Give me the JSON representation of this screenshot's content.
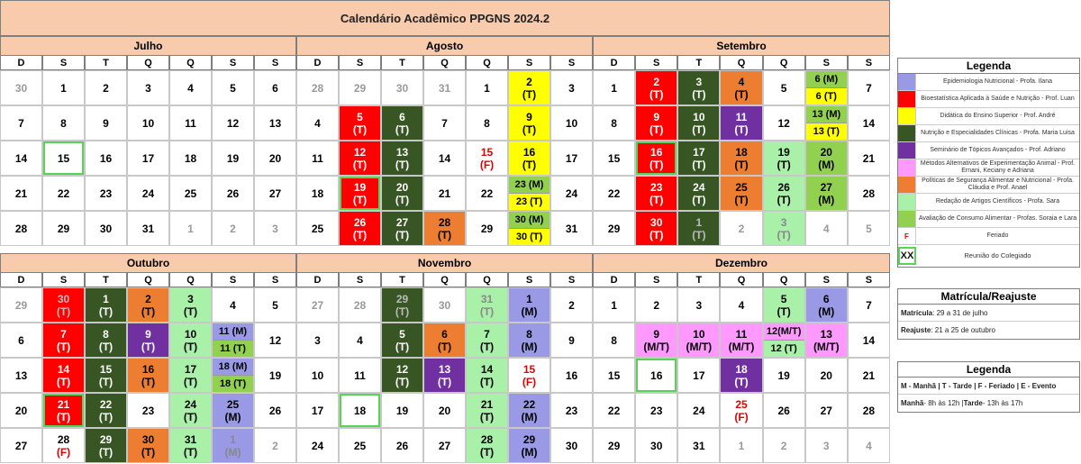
{
  "title": "Calendário Acadêmico PPGNS 2024.2",
  "weekdays": [
    "D",
    "S",
    "T",
    "Q",
    "Q",
    "S",
    "S"
  ],
  "colors": {
    "R": "#ff0000",
    "DG": "#375623",
    "Y": "#ffff00",
    "O": "#ed7d31",
    "PU": "#7030a0",
    "LP": "#9999e6",
    "PK": "#ff99ff",
    "LG": "#92d050",
    "MG": "#a9f0a9"
  },
  "months": [
    {
      "name": "Julho",
      "weeks": [
        [
          {
            "t": "30",
            "x": "o"
          },
          {
            "t": "1"
          },
          {
            "t": "2"
          },
          {
            "t": "3"
          },
          {
            "t": "4"
          },
          {
            "t": "5"
          },
          {
            "t": "6"
          }
        ],
        [
          {
            "t": "7"
          },
          {
            "t": "8"
          },
          {
            "t": "9"
          },
          {
            "t": "10"
          },
          {
            "t": "11"
          },
          {
            "t": "12"
          },
          {
            "t": "13"
          }
        ],
        [
          {
            "t": "14"
          },
          {
            "t": "15",
            "s": 1
          },
          {
            "t": "16"
          },
          {
            "t": "17"
          },
          {
            "t": "18"
          },
          {
            "t": "19"
          },
          {
            "t": "20"
          }
        ],
        [
          {
            "t": "21"
          },
          {
            "t": "22"
          },
          {
            "t": "23"
          },
          {
            "t": "24"
          },
          {
            "t": "25"
          },
          {
            "t": "26"
          },
          {
            "t": "27"
          }
        ],
        [
          {
            "t": "28"
          },
          {
            "t": "29"
          },
          {
            "t": "30"
          },
          {
            "t": "31"
          },
          {
            "t": "1",
            "x": "o"
          },
          {
            "t": "2",
            "x": "o"
          },
          {
            "t": "3",
            "x": "o"
          }
        ]
      ]
    },
    {
      "name": "Agosto",
      "weeks": [
        [
          {
            "t": "28",
            "x": "o"
          },
          {
            "t": "29",
            "x": "o"
          },
          {
            "t": "30",
            "x": "o"
          },
          {
            "t": "31",
            "x": "o"
          },
          {
            "t": "1"
          },
          {
            "t": "2",
            "b": "(T)",
            "c": "Y"
          },
          {
            "t": "3"
          }
        ],
        [
          {
            "t": "4"
          },
          {
            "t": "5",
            "b": "(T)",
            "c": "R",
            "w": 1
          },
          {
            "t": "6",
            "b": "(T)",
            "c": "DG",
            "w": 1
          },
          {
            "t": "7"
          },
          {
            "t": "8"
          },
          {
            "t": "9",
            "b": "(T)",
            "c": "Y"
          },
          {
            "t": "10"
          }
        ],
        [
          {
            "t": "11"
          },
          {
            "t": "12",
            "b": "(T)",
            "c": "R",
            "w": 1
          },
          {
            "t": "13",
            "b": "(T)",
            "c": "DG",
            "w": 1
          },
          {
            "t": "14"
          },
          {
            "t": "15",
            "b": "(F)",
            "x": "h"
          },
          {
            "t": "16",
            "b": "(T)",
            "c": "Y"
          },
          {
            "t": "17"
          }
        ],
        [
          {
            "t": "18"
          },
          {
            "t": "19",
            "b": "(T)",
            "c": "R",
            "w": 1,
            "s": 1
          },
          {
            "t": "20",
            "b": "(T)",
            "c": "DG",
            "w": 1
          },
          {
            "t": "21"
          },
          {
            "t": "22"
          },
          {
            "split": [
              {
                "t": "23 (M)",
                "c": "LG"
              },
              {
                "t": "23 (T)",
                "c": "Y"
              }
            ]
          },
          {
            "t": "24"
          }
        ],
        [
          {
            "t": "25"
          },
          {
            "t": "26",
            "b": "(T)",
            "c": "R",
            "w": 1
          },
          {
            "t": "27",
            "b": "(T)",
            "c": "DG",
            "w": 1
          },
          {
            "t": "28",
            "b": "(T)",
            "c": "O"
          },
          {
            "t": "29"
          },
          {
            "split": [
              {
                "t": "30 (M)",
                "c": "LG"
              },
              {
                "t": "30 (T)",
                "c": "Y"
              }
            ]
          },
          {
            "t": "31"
          }
        ]
      ]
    },
    {
      "name": "Setembro",
      "weeks": [
        [
          {
            "t": "1"
          },
          {
            "t": "2",
            "b": "(T)",
            "c": "R"
          },
          {
            "t": "3",
            "b": "(T)",
            "c": "DG",
            "w": 1
          },
          {
            "t": "4",
            "b": "(T)",
            "c": "O"
          },
          {
            "t": "5"
          },
          {
            "split": [
              {
                "t": "6 (M)",
                "c": "LG"
              },
              {
                "t": "6 (T)",
                "c": "Y"
              }
            ]
          },
          {
            "t": "7"
          }
        ],
        [
          {
            "t": "8"
          },
          {
            "t": "9",
            "b": "(T)",
            "c": "R",
            "w": 1
          },
          {
            "t": "10",
            "b": "(T)",
            "c": "DG",
            "w": 1
          },
          {
            "t": "11",
            "b": "(T)",
            "c": "PU",
            "w": 1
          },
          {
            "t": "12"
          },
          {
            "split": [
              {
                "t": "13 (M)",
                "c": "LG"
              },
              {
                "t": "13 (T)",
                "c": "Y"
              }
            ]
          },
          {
            "t": "14"
          }
        ],
        [
          {
            "t": "15"
          },
          {
            "t": "16",
            "b": "(T)",
            "c": "R",
            "s": 1
          },
          {
            "t": "17",
            "b": "(T)",
            "c": "DG",
            "w": 1
          },
          {
            "t": "18",
            "b": "(T)",
            "c": "O"
          },
          {
            "t": "19",
            "b": "(T)",
            "c": "MG"
          },
          {
            "t": "20",
            "b": "(M)",
            "c": "LG"
          },
          {
            "t": "21"
          }
        ],
        [
          {
            "t": "22"
          },
          {
            "t": "23",
            "b": "(T)",
            "c": "R",
            "w": 1
          },
          {
            "t": "24",
            "b": "(T)",
            "c": "DG",
            "w": 1
          },
          {
            "t": "25",
            "b": "(T)",
            "c": "O"
          },
          {
            "t": "26",
            "b": "(T)",
            "c": "MG"
          },
          {
            "t": "27",
            "b": "(M)",
            "c": "LG"
          },
          {
            "t": "28"
          }
        ],
        [
          {
            "t": "29"
          },
          {
            "t": "30",
            "b": "(T)",
            "c": "R",
            "w": 1
          },
          {
            "t": "1",
            "b": "(T)",
            "c": "DG",
            "x": "o"
          },
          {
            "t": "2",
            "x": "o"
          },
          {
            "t": "3",
            "b": "(T)",
            "c": "MG",
            "x": "o"
          },
          {
            "t": "4",
            "x": "o"
          },
          {
            "t": "5",
            "x": "o"
          }
        ]
      ]
    },
    {
      "name": "Outubro",
      "weeks": [
        [
          {
            "t": "29",
            "x": "o"
          },
          {
            "t": "30",
            "b": "(T)",
            "c": "R",
            "x": "o"
          },
          {
            "t": "1",
            "b": "(T)",
            "c": "DG",
            "w": 1
          },
          {
            "t": "2",
            "b": "(T)",
            "c": "O"
          },
          {
            "t": "3",
            "b": "(T)",
            "c": "MG"
          },
          {
            "t": "4"
          },
          {
            "t": "5"
          }
        ],
        [
          {
            "t": "6"
          },
          {
            "t": "7",
            "b": "(T)",
            "c": "R",
            "w": 1
          },
          {
            "t": "8",
            "b": "(T)",
            "c": "DG",
            "w": 1
          },
          {
            "t": "9",
            "b": "(T)",
            "c": "PU",
            "w": 1
          },
          {
            "t": "10",
            "b": "(T)",
            "c": "MG"
          },
          {
            "split": [
              {
                "t": "11 (M)",
                "c": "LP"
              },
              {
                "t": "11 (T)",
                "c": "LG"
              }
            ]
          },
          {
            "t": "12"
          }
        ],
        [
          {
            "t": "13"
          },
          {
            "t": "14",
            "b": "(T)",
            "c": "R",
            "w": 1
          },
          {
            "t": "15",
            "b": "(T)",
            "c": "DG",
            "w": 1
          },
          {
            "t": "16",
            "b": "(T)",
            "c": "O"
          },
          {
            "t": "17",
            "b": "(T)",
            "c": "MG"
          },
          {
            "split": [
              {
                "t": "18 (M)",
                "c": "LP"
              },
              {
                "t": "18 (T)",
                "c": "LG"
              }
            ]
          },
          {
            "t": "19"
          }
        ],
        [
          {
            "t": "20"
          },
          {
            "t": "21",
            "b": "(T)",
            "c": "R",
            "w": 1,
            "s": 1
          },
          {
            "t": "22",
            "b": "(T)",
            "c": "DG",
            "w": 1
          },
          {
            "t": "23"
          },
          {
            "t": "24",
            "b": "(T)",
            "c": "MG"
          },
          {
            "t": "25",
            "b": "(M)",
            "c": "LP"
          },
          {
            "t": "26"
          }
        ],
        [
          {
            "t": "27"
          },
          {
            "t": "28",
            "b": "(F)",
            "x": "h2"
          },
          {
            "t": "29",
            "b": "(T)",
            "c": "DG",
            "w": 1
          },
          {
            "t": "30",
            "b": "(T)",
            "c": "O"
          },
          {
            "t": "31",
            "b": "(T)",
            "c": "MG"
          },
          {
            "t": "1",
            "b": "(M)",
            "c": "LP",
            "x": "o"
          },
          {
            "t": "2",
            "x": "o"
          }
        ]
      ]
    },
    {
      "name": "Novembro",
      "weeks": [
        [
          {
            "t": "27",
            "x": "o"
          },
          {
            "t": "28",
            "x": "o"
          },
          {
            "t": "29",
            "b": "(T)",
            "c": "DG",
            "x": "o"
          },
          {
            "t": "30",
            "x": "o"
          },
          {
            "t": "31",
            "b": "(T)",
            "c": "MG",
            "x": "o"
          },
          {
            "t": "1",
            "b": "(M)",
            "c": "LP"
          },
          {
            "t": "2"
          }
        ],
        [
          {
            "t": "3"
          },
          {
            "t": "4"
          },
          {
            "t": "5",
            "b": "(T)",
            "c": "DG",
            "w": 1
          },
          {
            "t": "6",
            "b": "(T)",
            "c": "O"
          },
          {
            "t": "7",
            "b": "(T)",
            "c": "MG"
          },
          {
            "t": "8",
            "b": "(M)",
            "c": "LP"
          },
          {
            "t": "9"
          }
        ],
        [
          {
            "t": "10"
          },
          {
            "t": "11"
          },
          {
            "t": "12",
            "b": "(T)",
            "c": "DG",
            "w": 1
          },
          {
            "t": "13",
            "b": "(T)",
            "c": "PU",
            "w": 1
          },
          {
            "t": "14",
            "b": "(T)",
            "c": "MG"
          },
          {
            "t": "15",
            "b": "(F)",
            "x": "h"
          },
          {
            "t": "16"
          }
        ],
        [
          {
            "t": "17"
          },
          {
            "t": "18",
            "s": 1
          },
          {
            "t": "19"
          },
          {
            "t": "20"
          },
          {
            "t": "21",
            "b": "(T)",
            "c": "MG"
          },
          {
            "t": "22",
            "b": "(M)",
            "c": "LP"
          },
          {
            "t": "23"
          }
        ],
        [
          {
            "t": "24"
          },
          {
            "t": "25"
          },
          {
            "t": "26"
          },
          {
            "t": "27"
          },
          {
            "t": "28",
            "b": "(T)",
            "c": "MG"
          },
          {
            "t": "29",
            "b": "(M)",
            "c": "LP"
          },
          {
            "t": "30"
          }
        ]
      ]
    },
    {
      "name": "Dezembro",
      "weeks": [
        [
          {
            "t": "1"
          },
          {
            "t": "2"
          },
          {
            "t": "3"
          },
          {
            "t": "4"
          },
          {
            "t": "5",
            "b": "(T)",
            "c": "MG"
          },
          {
            "t": "6",
            "b": "(M)",
            "c": "LP"
          },
          {
            "t": "7"
          }
        ],
        [
          {
            "t": "8"
          },
          {
            "t": "9",
            "b": "(M/T)",
            "c": "PK"
          },
          {
            "t": "10",
            "b": "(M/T)",
            "c": "PK"
          },
          {
            "t": "11",
            "b": "(M/T)",
            "c": "PK"
          },
          {
            "split": [
              {
                "t": "12(M/T)",
                "c": "PK"
              },
              {
                "t": "12 (T)",
                "c": "MG"
              }
            ]
          },
          {
            "t": "13",
            "b": "(M/T)",
            "c": "PK"
          },
          {
            "t": "14"
          }
        ],
        [
          {
            "t": "15"
          },
          {
            "t": "16",
            "s": 1
          },
          {
            "t": "17"
          },
          {
            "t": "18",
            "b": "(T)",
            "c": "PU",
            "w": 1
          },
          {
            "t": "19"
          },
          {
            "t": "20"
          },
          {
            "t": "21"
          }
        ],
        [
          {
            "t": "22"
          },
          {
            "t": "23"
          },
          {
            "t": "24"
          },
          {
            "t": "25",
            "b": "(F)",
            "x": "h"
          },
          {
            "t": "26"
          },
          {
            "t": "27"
          },
          {
            "t": "28"
          }
        ],
        [
          {
            "t": "29"
          },
          {
            "t": "30"
          },
          {
            "t": "31"
          },
          {
            "t": "1",
            "x": "o"
          },
          {
            "t": "2",
            "x": "o"
          },
          {
            "t": "3",
            "x": "o"
          },
          {
            "t": "4",
            "x": "o"
          }
        ]
      ]
    }
  ],
  "legend": {
    "title": "Legenda",
    "items": [
      {
        "c": "LP",
        "label": "Epidemiologia Nutricional - Profa. Ilana"
      },
      {
        "c": "R",
        "label": "Bioestatística Aplicada à Saúde e Nutrição - Prof. Luan"
      },
      {
        "c": "Y",
        "label": "Didática do Ensino Superior - Prof. André"
      },
      {
        "c": "DG",
        "label": "Nutrição e Especialidades Clínicas - Profa. Maria Luisa"
      },
      {
        "c": "PU",
        "label": "Seminário de Tópicos Avançados - Prof. Adriano"
      },
      {
        "c": "PK",
        "label": "Métodos Alternativos de Experimentação Animal - Prof. Ernani, Keciany e Adriana"
      },
      {
        "c": "O",
        "label": "Políticas de Segurança Alimentar e Nutricional - Profa. Cláudia e Prof. Anael"
      },
      {
        "c": "MG",
        "label": "Redação de Artigos Científicos - Profa. Sara"
      },
      {
        "c": "LG",
        "label": "Avaliação de Consumo Alimentar - Profas. Soraia e Lara"
      }
    ],
    "holiday_symbol": "F",
    "holiday_label": "Feriado",
    "meeting_symbol": "XX",
    "meeting_label": "Reunião do Colegiado"
  },
  "matricula": {
    "title": "Matrícula/Reajuste",
    "matricula_label": "Matrícula",
    "matricula_value": ": 29 a 31 de julho",
    "reajuste_label": "Reajuste",
    "reajuste_value": ": 21 a 25 de outubro"
  },
  "legend2": {
    "title": "Legenda",
    "line1": "M - Manhã  |  T - Tarde  |  F - Feriado  |  E - Evento",
    "manha_label": "Manhã",
    "manha_value": " - 8h às 12h  |  ",
    "tarde_label": "Tarde",
    "tarde_value": " - 13h às 17h"
  }
}
